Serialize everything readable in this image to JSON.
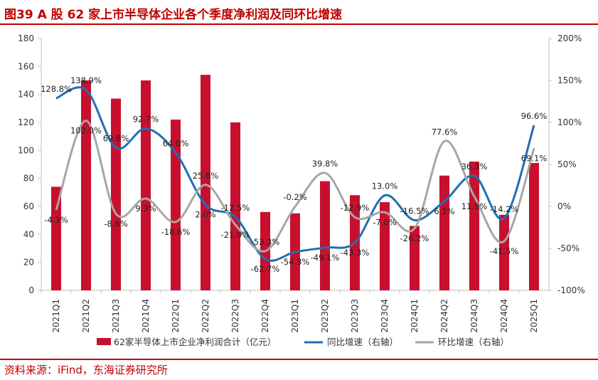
{
  "title": "图39  A 股 62 家上市半导体企业各个季度净利润及同环比增速",
  "source": "资料来源：iFind，东海证券研究所",
  "chart_data": {
    "type": "bar+line",
    "categories": [
      "2021Q1",
      "2021Q2",
      "2021Q3",
      "2021Q4",
      "2022Q1",
      "2022Q2",
      "2022Q3",
      "2022Q4",
      "2023Q1",
      "2023Q2",
      "2023Q3",
      "2023Q4",
      "2024Q1",
      "2024Q2",
      "2024Q3",
      "2024Q4",
      "2025Q1"
    ],
    "left_axis": {
      "min": 0,
      "max": 180,
      "ticks": [
        "0",
        "20",
        "40",
        "60",
        "80",
        "100",
        "120",
        "140",
        "160",
        "180"
      ],
      "tick_values": [
        0,
        20,
        40,
        60,
        80,
        100,
        120,
        140,
        160,
        180
      ]
    },
    "right_axis": {
      "min": -100,
      "max": 200,
      "ticks": [
        "-100%",
        "-50%",
        "0%",
        "50%",
        "100%",
        "150%",
        "200%"
      ],
      "tick_values": [
        -100,
        -50,
        0,
        50,
        100,
        150,
        200
      ]
    },
    "series": [
      {
        "name": "62家半导体上市企业净利润合计（亿元）",
        "kind": "bar",
        "axis": "left",
        "color": "#c8102e",
        "values": [
          74,
          150,
          137,
          150,
          122,
          154,
          120,
          56,
          55,
          78,
          68,
          63,
          46,
          82,
          92,
          54,
          91
        ]
      },
      {
        "name": "同比增速（右轴）",
        "kind": "line",
        "axis": "right",
        "color": "#1f6fb5",
        "values": [
          128.8,
          138.9,
          69.8,
          92.7,
          64.0,
          2.0,
          -12.5,
          -62.7,
          -54.3,
          -49.1,
          -43.3,
          13.0,
          -16.5,
          6.1,
          36.3,
          -14.2,
          96.6
        ],
        "labels": [
          "128.8%",
          "138.9%",
          "69.8%",
          "92.7%",
          "64.0%",
          "2.0%",
          "-12.5%",
          "-62.7%",
          "-54.3%",
          "-49.1%",
          "-43.3%",
          "13.0%",
          "-16.5%",
          "6.1%",
          "36.3%",
          "-14.2%",
          "96.6%"
        ]
      },
      {
        "name": "环比增速（右轴）",
        "kind": "line",
        "axis": "right",
        "color": "#a6a6a6",
        "values": [
          -4.3,
          102.0,
          -8.8,
          9.3,
          -18.6,
          25.6,
          -21.9,
          -53.3,
          -0.2,
          39.8,
          -12.9,
          -7.0,
          -26.2,
          77.6,
          11.9,
          -41.5,
          69.1
        ],
        "labels": [
          "-4.3%",
          "102.0%",
          "-8.8%",
          "9.3%",
          "-18.6%",
          "25.6%",
          "-21.9%",
          "-53.3%",
          "-0.2%",
          "39.8%",
          "-12.9%",
          "-7.0%",
          "-26.2%",
          "77.6%",
          "11.9%",
          "-41.5%",
          "69.1%"
        ]
      }
    ],
    "legend": {
      "position": "bottom"
    },
    "grid": false
  }
}
